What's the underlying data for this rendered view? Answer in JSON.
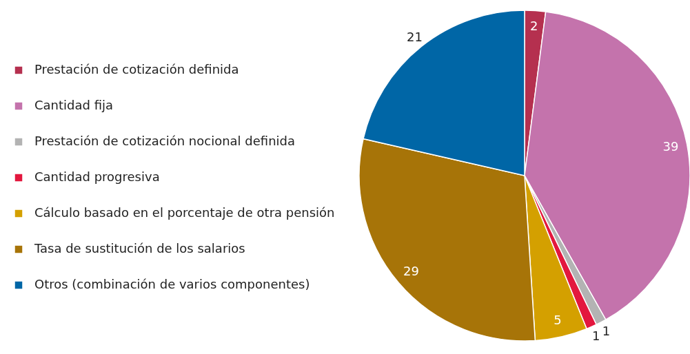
{
  "chart_data": {
    "type": "pie",
    "categories": [
      "Prestación de cotización definida",
      "Cantidad fija",
      "Prestación de cotización nocional definida",
      "Cantidad progresiva",
      "Cálculo basado en el porcentaje de otra pensión",
      "Tasa de sustitución de los salarios",
      "Otros (combinación de varios componentes)"
    ],
    "values": [
      2,
      39,
      1,
      1,
      5,
      29,
      21
    ],
    "colors": [
      "#b5304f",
      "#c473ac",
      "#b3b3b3",
      "#e3173e",
      "#d4a000",
      "#a77408",
      "#0066a6"
    ],
    "data_labels": true,
    "legend": "left"
  }
}
